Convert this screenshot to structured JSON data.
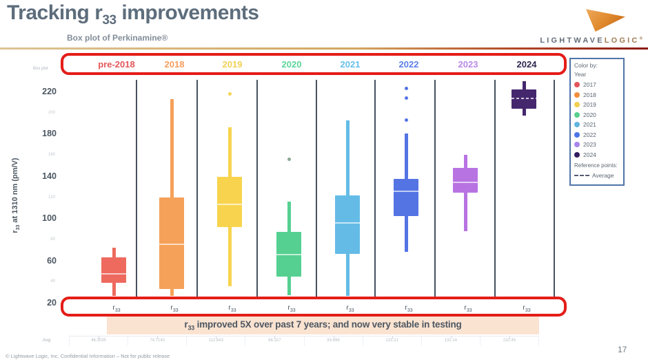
{
  "slide": {
    "title_prefix": "Tracking r",
    "title_sub": "33",
    "title_suffix": " improvements",
    "subtitle": "Box plot of Perkinamine®",
    "footer": "© Lightwave Logic, Inc. Confidential Information – Not for public release",
    "page_number": "17",
    "logo": {
      "word1": "LIGHTWAVE",
      "word2": "LOGIC",
      "reg": "®"
    }
  },
  "callout": {
    "prefix": "r",
    "sub": "33",
    "text": " improved 5X over past 7 years; and now very stable in testing"
  },
  "legend": {
    "color_by_label": "Color by:",
    "field_label": "Year",
    "items": [
      {
        "label": "2017",
        "color": "#e4565a"
      },
      {
        "label": "2018",
        "color": "#f28e3b"
      },
      {
        "label": "2019",
        "color": "#f2cf4e"
      },
      {
        "label": "2020",
        "color": "#58d08c"
      },
      {
        "label": "2021",
        "color": "#62b4e0"
      },
      {
        "label": "2022",
        "color": "#4b74e8"
      },
      {
        "label": "2023",
        "color": "#a884ec"
      },
      {
        "label": "2024",
        "color": "#321b5e"
      }
    ],
    "reference_label": "Reference points:",
    "reference_item": "Average"
  },
  "chart_data": {
    "type": "box",
    "corner_tag": "Box plot",
    "ylabel_prefix": "r",
    "ylabel_sub": "33",
    "ylabel_suffix": " at 1310 nm (pm/V)",
    "ylim": [
      20,
      232
    ],
    "yticks_major": [
      220,
      180,
      140,
      100,
      60,
      20
    ],
    "yticks_minor": [
      200,
      160,
      120,
      80,
      40
    ],
    "x_item_base": "r",
    "x_item_sub": "33",
    "grid": false,
    "legend_position": "right",
    "groups": [
      {
        "label": "pre-2018",
        "header_color": "#e4575a",
        "color": "#ee6a5f",
        "low": 22,
        "q1": 37,
        "median": 46,
        "q3": 61,
        "high": 70,
        "outliers": []
      },
      {
        "label": "2018",
        "header_color": "#f59d5c",
        "color": "#f5a159",
        "low": 23,
        "q1": 31,
        "median": 74,
        "q3": 118,
        "high": 211,
        "outliers": []
      },
      {
        "label": "2019",
        "header_color": "#f2d054",
        "color": "#f8d44e",
        "low": 34,
        "q1": 90,
        "median": 112,
        "q3": 137,
        "high": 184,
        "outliers": [
          216
        ]
      },
      {
        "label": "2020",
        "header_color": "#5ad49a",
        "color": "#55d091",
        "low": 25,
        "q1": 43,
        "median": 64,
        "q3": 85,
        "high": 114,
        "outliers": [
          154
        ],
        "outlier_color": "#8aa893"
      },
      {
        "label": "2021",
        "header_color": "#66c0ea",
        "color": "#64bce6",
        "low": 22,
        "q1": 64,
        "median": 94,
        "q3": 120,
        "high": 191,
        "outliers": []
      },
      {
        "label": "2022",
        "header_color": "#5b7ee8",
        "color": "#5474e4",
        "low": 66,
        "q1": 100,
        "median": 124,
        "q3": 135,
        "high": 178,
        "outliers": [
          191,
          212,
          221
        ]
      },
      {
        "label": "2023",
        "header_color": "#b88ae8",
        "color": "#b873e2",
        "low": 86,
        "q1": 122,
        "median": 133,
        "q3": 146,
        "high": 158,
        "outliers": []
      },
      {
        "label": "2024",
        "header_color": "#2d2850",
        "color": "#45276e",
        "low": 195,
        "q1": 202,
        "median": 212,
        "q3": 220,
        "high": 228,
        "outliers": [],
        "median_dashed": true
      }
    ],
    "avg_row": {
      "label": "Avg",
      "values": [
        "46.3035",
        "74.7143",
        "112.843",
        "66.327",
        "93.696",
        "123.31",
        "131.14",
        "210.45"
      ]
    }
  },
  "colors": {
    "highlight_border": "#e41d18",
    "callout_bg": "#fbe3d1",
    "separator": "#46505e",
    "title_text": "#5d6d7c"
  }
}
